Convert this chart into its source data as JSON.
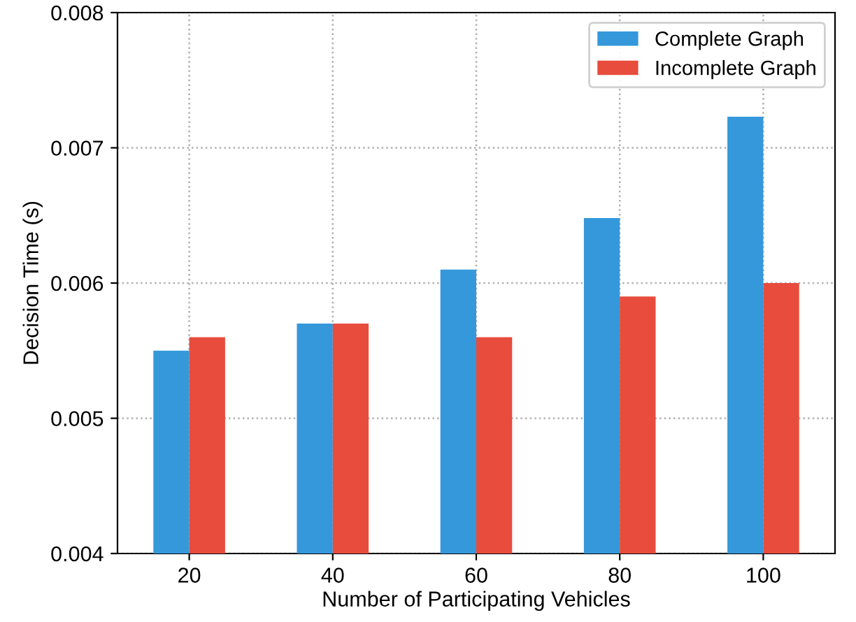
{
  "chart_data": {
    "type": "bar",
    "xlabel": "Number of Participating Vehicles",
    "ylabel": "Decision Time (s)",
    "categories": [
      "20",
      "40",
      "60",
      "80",
      "100"
    ],
    "series": [
      {
        "name": "Complete Graph",
        "color": "#3498db",
        "values": [
          0.0055,
          0.0057,
          0.0061,
          0.00648,
          0.00723
        ]
      },
      {
        "name": "Incomplete Graph",
        "color": "#e74c3c",
        "values": [
          0.0056,
          0.0057,
          0.0056,
          0.0059,
          0.006
        ]
      }
    ],
    "ylim": [
      0.004,
      0.008
    ],
    "yticks": [
      0.004,
      0.005,
      0.006,
      0.007,
      0.008
    ],
    "grid": true,
    "legend": "top right"
  }
}
